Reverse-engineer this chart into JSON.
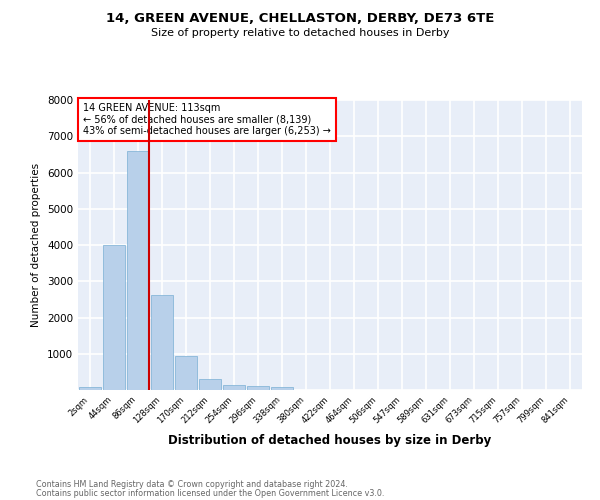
{
  "title1": "14, GREEN AVENUE, CHELLASTON, DERBY, DE73 6TE",
  "title2": "Size of property relative to detached houses in Derby",
  "xlabel": "Distribution of detached houses by size in Derby",
  "ylabel": "Number of detached properties",
  "bar_color": "#b8d0ea",
  "bar_edge_color": "#7aafd4",
  "background_color": "#e8eef8",
  "grid_color": "#ffffff",
  "categories": [
    "2sqm",
    "44sqm",
    "86sqm",
    "128sqm",
    "170sqm",
    "212sqm",
    "254sqm",
    "296sqm",
    "338sqm",
    "380sqm",
    "422sqm",
    "464sqm",
    "506sqm",
    "547sqm",
    "589sqm",
    "631sqm",
    "673sqm",
    "715sqm",
    "757sqm",
    "799sqm",
    "841sqm"
  ],
  "values": [
    70,
    4000,
    6600,
    2620,
    950,
    310,
    130,
    110,
    80,
    0,
    0,
    0,
    0,
    0,
    0,
    0,
    0,
    0,
    0,
    0,
    0
  ],
  "ylim": [
    0,
    8000
  ],
  "yticks": [
    0,
    1000,
    2000,
    3000,
    4000,
    5000,
    6000,
    7000,
    8000
  ],
  "property_line_label": "14 GREEN AVENUE: 113sqm",
  "annotation_line1": "← 56% of detached houses are smaller (8,139)",
  "annotation_line2": "43% of semi-detached houses are larger (6,253) →",
  "annotation_box_color": "white",
  "annotation_box_edge_color": "red",
  "vline_color": "#cc0000",
  "footer1": "Contains HM Land Registry data © Crown copyright and database right 2024.",
  "footer2": "Contains public sector information licensed under the Open Government Licence v3.0."
}
